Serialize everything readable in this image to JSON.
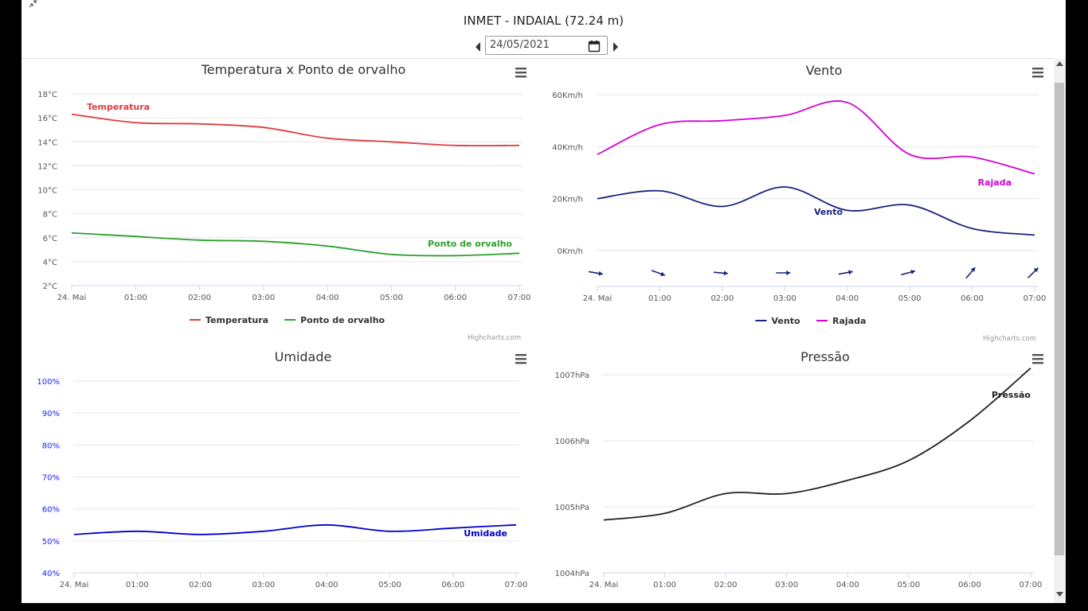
{
  "page": {
    "title": "INMET - INDAIAL (72.24 m)",
    "date": "24/05/2021",
    "corner_icon": "collapse-arrows-icon",
    "prev_icon": "caret-left-icon",
    "next_icon": "caret-right-icon",
    "calendar_icon": "calendar-icon",
    "menu_icon": "hamburger-menu-icon",
    "credits": "Highcharts.com"
  },
  "chart_data": [
    {
      "id": "temp",
      "type": "line",
      "title": "Temperatura x Ponto de orvalho",
      "categories": [
        "24. Mai",
        "01:00",
        "02:00",
        "03:00",
        "04:00",
        "05:00",
        "06:00",
        "07:00"
      ],
      "yticks": [
        "2°C",
        "4°C",
        "6°C",
        "8°C",
        "10°C",
        "12°C",
        "14°C",
        "16°C",
        "18°C"
      ],
      "ylim": [
        2,
        18
      ],
      "series": [
        {
          "name": "Temperatura",
          "color": "#e03c3c",
          "values": [
            16.3,
            15.6,
            15.5,
            15.2,
            14.3,
            14.0,
            13.7,
            13.7
          ]
        },
        {
          "name": "Ponto de orvalho",
          "color": "#2ca02c",
          "values": [
            6.4,
            6.1,
            5.8,
            5.7,
            5.3,
            4.6,
            4.5,
            4.7
          ]
        }
      ],
      "legend": "bottom-center"
    },
    {
      "id": "wind",
      "type": "line",
      "title": "Vento",
      "categories": [
        "24. Mai",
        "01:00",
        "02:00",
        "03:00",
        "04:00",
        "05:00",
        "06:00",
        "07:00"
      ],
      "yticks": [
        "0Km/h",
        "20Km/h",
        "40Km/h",
        "60Km/h"
      ],
      "ylim": [
        0,
        60
      ],
      "series": [
        {
          "name": "Vento",
          "color": "#1a237e",
          "values": [
            20,
            23,
            17,
            24.5,
            15.5,
            17.5,
            8.5,
            6
          ]
        },
        {
          "name": "Rajada",
          "color": "#d400d4",
          "values": [
            37,
            48.5,
            50,
            52,
            57,
            37,
            36,
            29.5
          ]
        }
      ],
      "wind_direction_deg": [
        100,
        110,
        95,
        90,
        80,
        75,
        40,
        45
      ],
      "legend": "bottom-center"
    },
    {
      "id": "humidity",
      "type": "line",
      "title": "Umidade",
      "categories": [
        "24. Mai",
        "01:00",
        "02:00",
        "03:00",
        "04:00",
        "05:00",
        "06:00",
        "07:00"
      ],
      "yticks": [
        "40%",
        "50%",
        "60%",
        "70%",
        "80%",
        "90%",
        "100%"
      ],
      "ylim": [
        40,
        100
      ],
      "series": [
        {
          "name": "Umidade",
          "color": "#0000cc",
          "values": [
            52,
            53,
            52,
            53,
            55,
            53,
            54,
            55
          ]
        }
      ]
    },
    {
      "id": "pressure",
      "type": "line",
      "title": "Pressão",
      "categories": [
        "24. Mai",
        "01:00",
        "02:00",
        "03:00",
        "04:00",
        "05:00",
        "06:00",
        "07:00"
      ],
      "yticks": [
        "1004hPa",
        "1005hPa",
        "1006hPa",
        "1007hPa"
      ],
      "ylim": [
        1004,
        1007
      ],
      "series": [
        {
          "name": "Pressão",
          "color": "#222222",
          "values": [
            1004.8,
            1004.9,
            1005.2,
            1005.2,
            1005.4,
            1005.7,
            1006.3,
            1007.1
          ]
        }
      ]
    }
  ]
}
